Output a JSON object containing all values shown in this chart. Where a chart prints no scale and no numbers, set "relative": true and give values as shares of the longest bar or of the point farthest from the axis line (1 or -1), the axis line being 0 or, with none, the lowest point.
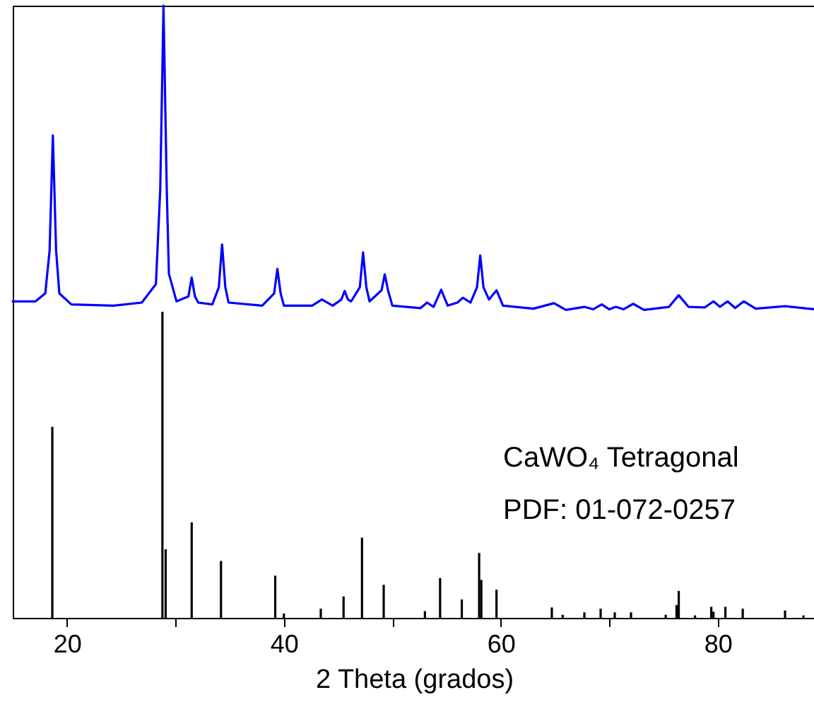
{
  "chart_data": {
    "type": "line",
    "relative": true,
    "xlabel": "2 Theta (grados)",
    "xlim": [
      15,
      89
    ],
    "xticks": [
      20,
      {
        "value": 30,
        "label": null
      },
      40,
      {
        "value": 50,
        "label": null
      },
      60,
      {
        "value": 70,
        "label": null
      },
      80
    ],
    "tick_labels": "x",
    "grid": false,
    "annotations": [
      "CaWO₄ Tetragonal",
      "PDF: 01-072-0257"
    ],
    "series": [
      {
        "color": "#0000ff",
        "x": [
          15.0,
          17.1,
          18.0,
          18.4,
          18.7,
          19.0,
          19.3,
          20.4,
          24.3,
          26.9,
          28.2,
          28.6,
          28.9,
          29.2,
          29.4,
          30.1,
          31.2,
          31.5,
          31.8,
          32.1,
          33.4,
          34.0,
          34.3,
          34.6,
          34.9,
          38.0,
          39.1,
          39.4,
          39.7,
          40.0,
          42.6,
          43.5,
          44.5,
          45.3,
          45.6,
          45.9,
          46.2,
          47.0,
          47.3,
          47.6,
          47.9,
          49.0,
          49.3,
          49.6,
          50.0,
          52.6,
          53.2,
          53.8,
          54.5,
          55.1,
          56.0,
          56.5,
          57.2,
          57.8,
          58.1,
          58.4,
          58.9,
          59.6,
          60.2,
          63.0,
          64.9,
          66.0,
          67.7,
          68.5,
          69.3,
          70.0,
          70.6,
          71.3,
          72.2,
          73.2,
          75.5,
          76.4,
          77.3,
          78.8,
          79.6,
          80.2,
          80.9,
          81.6,
          82.4,
          83.5,
          86.2,
          89.0
        ],
        "values": [
          0.517,
          0.517,
          0.53,
          0.6,
          0.788,
          0.6,
          0.53,
          0.512,
          0.51,
          0.515,
          0.545,
          0.7,
          1.0,
          0.7,
          0.562,
          0.517,
          0.525,
          0.556,
          0.525,
          0.515,
          0.512,
          0.54,
          0.61,
          0.54,
          0.515,
          0.51,
          0.53,
          0.57,
          0.53,
          0.51,
          0.51,
          0.52,
          0.51,
          0.52,
          0.534,
          0.52,
          0.517,
          0.54,
          0.597,
          0.54,
          0.517,
          0.535,
          0.561,
          0.535,
          0.51,
          0.506,
          0.515,
          0.508,
          0.536,
          0.51,
          0.515,
          0.523,
          0.515,
          0.54,
          0.592,
          0.54,
          0.52,
          0.535,
          0.51,
          0.505,
          0.514,
          0.503,
          0.508,
          0.504,
          0.512,
          0.504,
          0.508,
          0.504,
          0.513,
          0.503,
          0.508,
          0.527,
          0.508,
          0.507,
          0.517,
          0.508,
          0.517,
          0.506,
          0.517,
          0.505,
          0.509,
          0.504
        ]
      },
      {
        "type": "bar",
        "color": "#000000",
        "x": [
          18.65,
          28.8,
          29.1,
          31.5,
          34.2,
          39.2,
          40.0,
          43.4,
          45.5,
          47.2,
          49.2,
          53.0,
          54.4,
          56.4,
          58.0,
          58.2,
          59.6,
          64.7,
          65.7,
          67.7,
          69.2,
          70.5,
          72.0,
          75.2,
          76.2,
          76.4,
          77.9,
          79.4,
          79.6,
          80.7,
          82.3,
          86.2,
          87.9
        ],
        "values": [
          0.312,
          0.5,
          0.112,
          0.156,
          0.093,
          0.069,
          0.007,
          0.015,
          0.035,
          0.131,
          0.054,
          0.011,
          0.065,
          0.03,
          0.106,
          0.062,
          0.046,
          0.017,
          0.005,
          0.009,
          0.015,
          0.009,
          0.009,
          0.005,
          0.021,
          0.044,
          0.004,
          0.018,
          0.01,
          0.018,
          0.015,
          0.012,
          0.004
        ]
      }
    ]
  }
}
